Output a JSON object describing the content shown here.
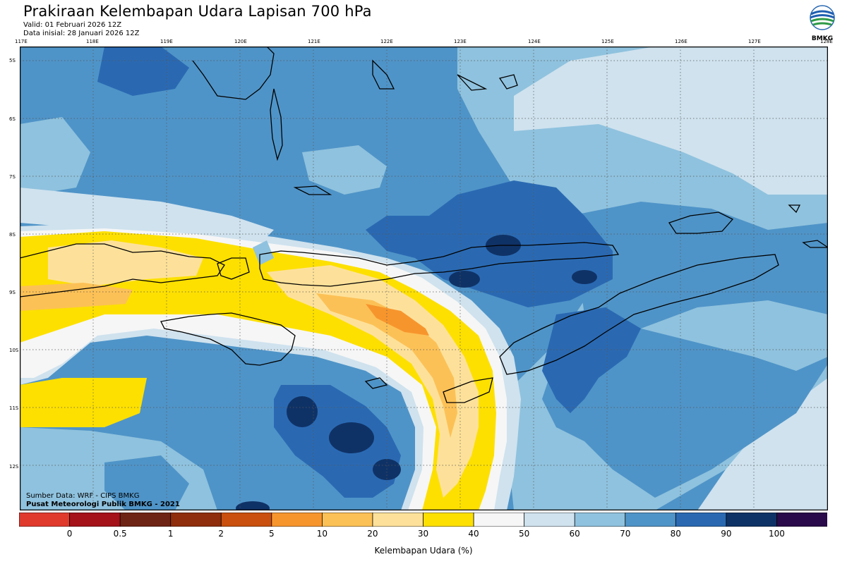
{
  "header": {
    "title": "Prakiraan Kelembapan Udara Lapisan 700 hPa",
    "valid": "Valid: 01 Februari 2026 12Z",
    "init": "Data inisial: 28 Januari 2026 12Z"
  },
  "logo": {
    "label": "BMKG",
    "icon": "bmkg-logo-icon"
  },
  "map": {
    "lon_ticks": [
      "117E",
      "118E",
      "119E",
      "120E",
      "121E",
      "122E",
      "123E",
      "124E",
      "125E",
      "126E",
      "127E",
      "128E"
    ],
    "lat_ticks": [
      "5S",
      "6S",
      "7S",
      "8S",
      "9S",
      "10S",
      "11S",
      "12S"
    ],
    "source": "Sumber Data: WRF - CIPS BMKG",
    "publisher": "Pusat Meteorologi Publik BMKG - 2021"
  },
  "colorbar": {
    "labels": [
      "0",
      "0.5",
      "1",
      "2",
      "5",
      "10",
      "20",
      "30",
      "40",
      "50",
      "60",
      "70",
      "80",
      "90",
      "100"
    ],
    "colors": [
      "#e03a2d",
      "#a5121a",
      "#6e2414",
      "#8f2e0c",
      "#c9500e",
      "#f7952d",
      "#fcc156",
      "#fde19a",
      "#fde000",
      "#f6f6f6",
      "#cfe2ee",
      "#8fc2de",
      "#4f94c8",
      "#2a69b2",
      "#0f3266",
      "#2a0a4a"
    ],
    "unit": "Kelembapan Udara (%)"
  }
}
